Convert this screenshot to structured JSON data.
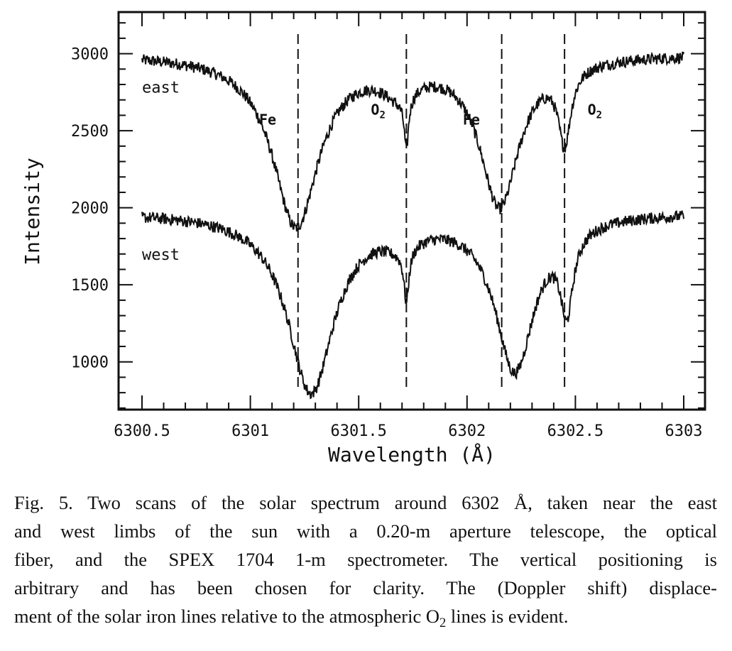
{
  "chart_data": {
    "type": "line",
    "xlabel": "Wavelength (Å)",
    "ylabel": "Intensity",
    "xlim": [
      6300.5,
      6303.0
    ],
    "ylim": [
      690,
      3270
    ],
    "x_ticks": [
      6300.5,
      6301,
      6301.5,
      6302,
      6302.5,
      6303
    ],
    "x_tick_labels": [
      "6300.5",
      "6301",
      "6301.5",
      "6302",
      "6302.5",
      "6303"
    ],
    "y_ticks": [
      1000,
      1500,
      2000,
      2500,
      3000
    ],
    "y_tick_labels": [
      "1000",
      "1500",
      "2000",
      "2500",
      "3000"
    ],
    "vlines": [
      6301.22,
      6301.72,
      6302.16,
      6302.45
    ],
    "series": [
      {
        "name": "east",
        "label": "east",
        "baseline": 3000,
        "noise": 38,
        "lines": [
          {
            "center": 6301.21,
            "depth": 1110,
            "width": 0.13
          },
          {
            "center": 6301.69,
            "depth": 180,
            "width": 0.1
          },
          {
            "center": 6301.72,
            "depth": 330,
            "width": 0.012
          },
          {
            "center": 6302.15,
            "depth": 970,
            "width": 0.11
          },
          {
            "center": 6302.45,
            "depth": 480,
            "width": 0.035
          }
        ]
      },
      {
        "name": "west",
        "label": "west",
        "baseline": 1975,
        "noise": 38,
        "lines": [
          {
            "center": 6301.28,
            "depth": 1160,
            "width": 0.13
          },
          {
            "center": 6301.7,
            "depth": 120,
            "width": 0.1
          },
          {
            "center": 6301.72,
            "depth": 330,
            "width": 0.014
          },
          {
            "center": 6302.22,
            "depth": 1010,
            "width": 0.11
          },
          {
            "center": 6302.46,
            "depth": 520,
            "width": 0.036
          }
        ]
      }
    ],
    "annotations": [
      {
        "text": "Fe",
        "x": 6301.08,
        "y": 2540
      },
      {
        "text": "O",
        "sub": "2",
        "x": 6301.59,
        "y": 2605
      },
      {
        "text": "Fe",
        "x": 6302.02,
        "y": 2540
      },
      {
        "text": "O",
        "sub": "2",
        "x": 6302.59,
        "y": 2605
      }
    ]
  },
  "caption": {
    "line1": "Fig. 5. Two scans of the solar spectrum around 6302 Å, taken near the east",
    "line2": "and west limbs of the sun with a 0.20-m aperture telescope, the optical",
    "line3": "fiber, and the SPEX 1704 1-m spectrometer. The vertical positioning is",
    "line4": "arbitrary and has been chosen for clarity. The (Doppler shift) displace-",
    "line5_pre": "ment of the solar iron lines relative to the atmospheric O",
    "line5_sub": "2",
    "line5_post": " lines is evident."
  }
}
